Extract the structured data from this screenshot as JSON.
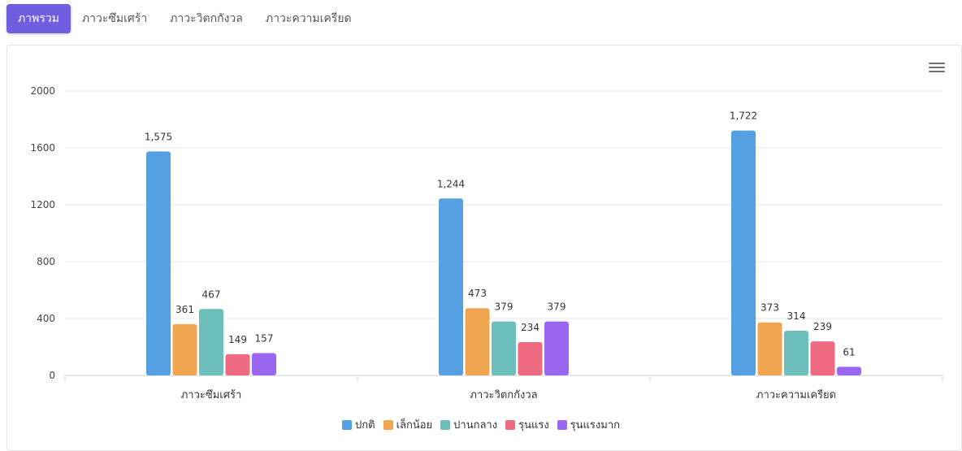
{
  "tabs": [
    {
      "label": "ภาพรวม",
      "active": true
    },
    {
      "label": "ภาวะซึมเศร้า",
      "active": false
    },
    {
      "label": "ภาวะวิตกกังวล",
      "active": false
    },
    {
      "label": "ภาวะความเครียด",
      "active": false
    }
  ],
  "menu": {
    "icon": "hamburger-menu-icon"
  },
  "chart_data": {
    "type": "bar",
    "categories": [
      "ภาวะซึมเศร้า",
      "ภาวะวิตกกังวล",
      "ภาวะความเครียด"
    ],
    "series": [
      {
        "name": "ปกติ",
        "color": "#559fe3",
        "values": [
          1575,
          1244,
          1722
        ]
      },
      {
        "name": "เล็กน้อย",
        "color": "#f0a551",
        "values": [
          361,
          473,
          373
        ]
      },
      {
        "name": "ปานกลาง",
        "color": "#6dbfbc",
        "values": [
          467,
          379,
          314
        ]
      },
      {
        "name": "รุนแรง",
        "color": "#ee6b82",
        "values": [
          149,
          234,
          239
        ]
      },
      {
        "name": "รุนแรงมาก",
        "color": "#9c67f0",
        "values": [
          157,
          379,
          61
        ]
      }
    ],
    "value_labels": [
      [
        "1,575",
        "1,244",
        "1,722"
      ],
      [
        "361",
        "473",
        "373"
      ],
      [
        "467",
        "379",
        "314"
      ],
      [
        "149",
        "234",
        "239"
      ],
      [
        "157",
        "379",
        "61"
      ]
    ],
    "y_ticks": [
      "0",
      "400",
      "800",
      "1200",
      "1600",
      "2000"
    ],
    "ylim": [
      0,
      2000
    ],
    "legend_position": "bottom-center",
    "grid": true
  }
}
